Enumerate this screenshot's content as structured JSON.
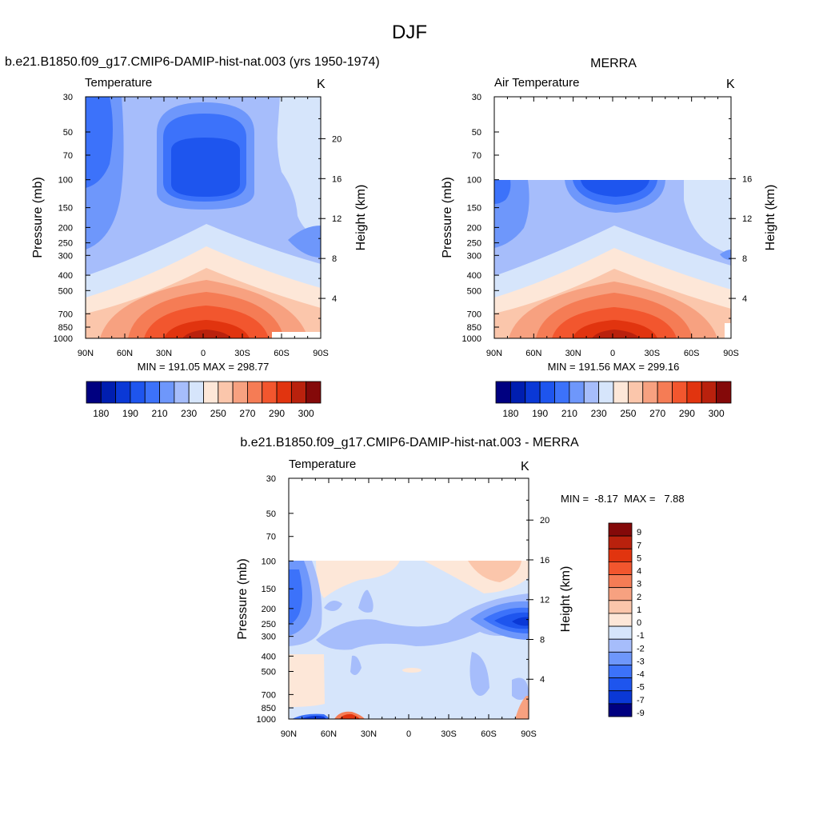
{
  "figure": {
    "title": "DJF"
  },
  "chart_data": [
    {
      "type": "heatmap",
      "subtitle": "b.e21.B1850.f09_g17.CMIP6-DAMIP-hist-nat.003 (yrs 1950-1974)",
      "title": "Temperature",
      "units": "K",
      "xlabel": "",
      "ylabel": "Pressure (mb)",
      "y2label": "Height (km)",
      "x_ticks": [
        "90N",
        "60N",
        "30N",
        "0",
        "30S",
        "60S",
        "90S"
      ],
      "y_ticks": [
        "30",
        "50",
        "70",
        "100",
        "150",
        "200",
        "250",
        "300",
        "400",
        "500",
        "700",
        "850",
        "1000"
      ],
      "y2_ticks": [
        "20",
        "16",
        "12",
        "8",
        "4"
      ],
      "ylim": [
        1000,
        30
      ],
      "stats_text": "MIN = 191.05  MAX = 298.77",
      "min": 191.05,
      "max": 298.77,
      "colorbar_labels": [
        "180",
        "190",
        "210",
        "230",
        "250",
        "270",
        "290",
        "300"
      ]
    },
    {
      "type": "heatmap",
      "subtitle": "MERRA",
      "title": "Air Temperature",
      "units": "K",
      "xlabel": "",
      "ylabel": "Pressure (mb)",
      "y2label": "Height (km)",
      "x_ticks": [
        "90N",
        "60N",
        "30N",
        "0",
        "30S",
        "60S",
        "90S"
      ],
      "y_ticks": [
        "30",
        "50",
        "70",
        "100",
        "150",
        "200",
        "250",
        "300",
        "400",
        "500",
        "700",
        "850",
        "1000"
      ],
      "y2_ticks": [
        "16",
        "12",
        "8",
        "4"
      ],
      "ylim": [
        1000,
        30
      ],
      "data_top": 100,
      "stats_text": "MIN = 191.56  MAX = 299.16",
      "min": 191.56,
      "max": 299.16,
      "colorbar_labels": [
        "180",
        "190",
        "210",
        "230",
        "250",
        "270",
        "290",
        "300"
      ]
    },
    {
      "type": "heatmap",
      "subtitle": "b.e21.B1850.f09_g17.CMIP6-DAMIP-hist-nat.003 - MERRA",
      "title": "Temperature",
      "units": "K",
      "xlabel": "",
      "ylabel": "Pressure (mb)",
      "y2label": "Height (km)",
      "x_ticks": [
        "90N",
        "60N",
        "30N",
        "0",
        "30S",
        "60S",
        "90S"
      ],
      "y_ticks": [
        "30",
        "50",
        "70",
        "100",
        "150",
        "200",
        "250",
        "300",
        "400",
        "500",
        "700",
        "850",
        "1000"
      ],
      "y2_ticks": [
        "20",
        "16",
        "12",
        "8",
        "4"
      ],
      "ylim": [
        1000,
        30
      ],
      "data_top": 100,
      "stats_text": "MIN =  -8.17  MAX =   7.88",
      "min": -8.17,
      "max": 7.88,
      "colorbar_labels": [
        "9",
        "7",
        "5",
        "4",
        "3",
        "2",
        "1",
        "0",
        "-1",
        "-2",
        "-3",
        "-4",
        "-5",
        "-7",
        "-9"
      ]
    }
  ],
  "colors": {
    "temp_scale": [
      "#000080",
      "#001eb0",
      "#0a38d6",
      "#1e55ee",
      "#3c72fa",
      "#6e97fb",
      "#a6bdfb",
      "#d6e5fb",
      "#fde7d8",
      "#fbc6ab",
      "#f7a180",
      "#f57c55",
      "#f2562e",
      "#e1340f",
      "#b9210d",
      "#840909"
    ],
    "diff_scale": [
      "#840909",
      "#b9210d",
      "#e1340f",
      "#f2562e",
      "#f57c55",
      "#f7a180",
      "#fbc6ab",
      "#fde7d8",
      "#d6e5fb",
      "#a6bdfb",
      "#6e97fb",
      "#3c72fa",
      "#1e55ee",
      "#0a38d6",
      "#000080"
    ]
  }
}
